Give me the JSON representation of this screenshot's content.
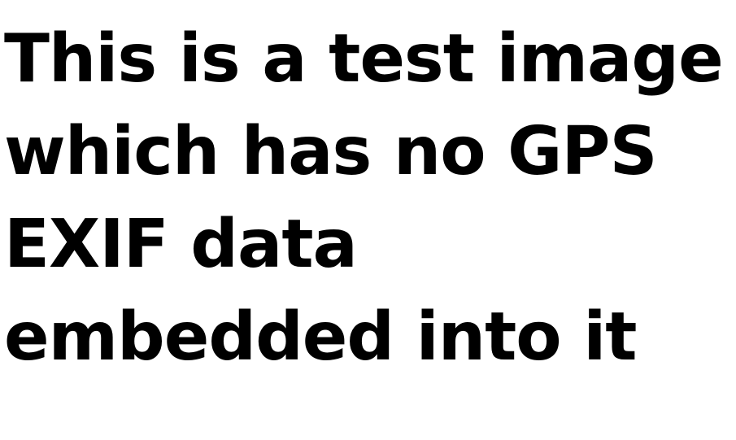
{
  "content": {
    "lines": [
      "This is a test image",
      "which has no GPS",
      "EXIF data",
      "embedded into it"
    ]
  },
  "colors": {
    "background": "#ffffff",
    "text": "#000000"
  }
}
